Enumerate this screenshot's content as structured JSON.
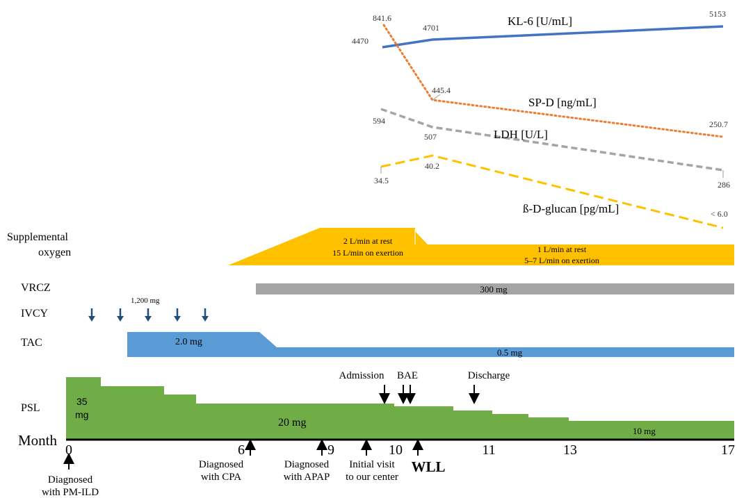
{
  "month_axis": {
    "label": "Month",
    "ticks": [
      {
        "value": 0,
        "label": "0"
      },
      {
        "value": 6,
        "label": "6"
      },
      {
        "value": 9,
        "label": "9"
      },
      {
        "value": 10,
        "label": "10"
      },
      {
        "value": 11,
        "label": "11"
      },
      {
        "value": 13,
        "label": "13"
      },
      {
        "value": 17,
        "label": "17"
      }
    ]
  },
  "biomarkers": {
    "kl6": {
      "label": "KL-6 [U/mL]",
      "color": "#4472C4",
      "values": [
        "4470",
        "4701",
        "5153"
      ]
    },
    "spd": {
      "label": "SP-D [ng/mL]",
      "color": "#ED7D31",
      "values": [
        "841.6",
        "445.4",
        "250.7"
      ]
    },
    "ldh": {
      "label": "LDH [U/L]",
      "color": "#A5A5A5",
      "values": [
        "594",
        "507",
        "286"
      ]
    },
    "bdg": {
      "label": "ß-D-glucan [pg/mL]",
      "color": "#FFC000",
      "values": [
        "34.5",
        "40.2",
        "< 6.0"
      ]
    }
  },
  "rows": {
    "oxygen": {
      "label_line1": "Supplemental",
      "label_line2": "oxygen",
      "color": "#FFC000",
      "phase1_line1": "2 L/min at rest",
      "phase1_line2": "15 L/min on exertion",
      "phase2_line1": "1 L/min at rest",
      "phase2_line2": "5–7 L/min on exertion"
    },
    "vrcz": {
      "label": "VRCZ",
      "color": "#A5A5A5",
      "dose": "300 mg"
    },
    "ivcy": {
      "label": "IVCY",
      "color": "#1F4E79",
      "dose": "1,200 mg",
      "doses_count": 5
    },
    "tac": {
      "label": "TAC",
      "color": "#5B9BD5",
      "dose_high": "2.0 mg",
      "dose_low": "0.5 mg"
    },
    "psl": {
      "label": "PSL",
      "color": "#70AD47",
      "dose_start_line1": "35",
      "dose_start_line2": "mg",
      "dose_mid": "20 mg",
      "dose_end": "10 mg"
    }
  },
  "events_above": {
    "admission": "Admission",
    "bae": "BAE",
    "discharge": "Discharge"
  },
  "events_below": {
    "pm_ild_line1": "Diagnosed",
    "pm_ild_line2": "with PM-ILD",
    "cpa_line1": "Diagnosed",
    "cpa_line2": "with CPA",
    "apap_line1": "Diagnosed",
    "apap_line2": "with APAP",
    "visit_line1": "Initial  visit",
    "visit_line2": "to our center",
    "wll": "WLL"
  }
}
